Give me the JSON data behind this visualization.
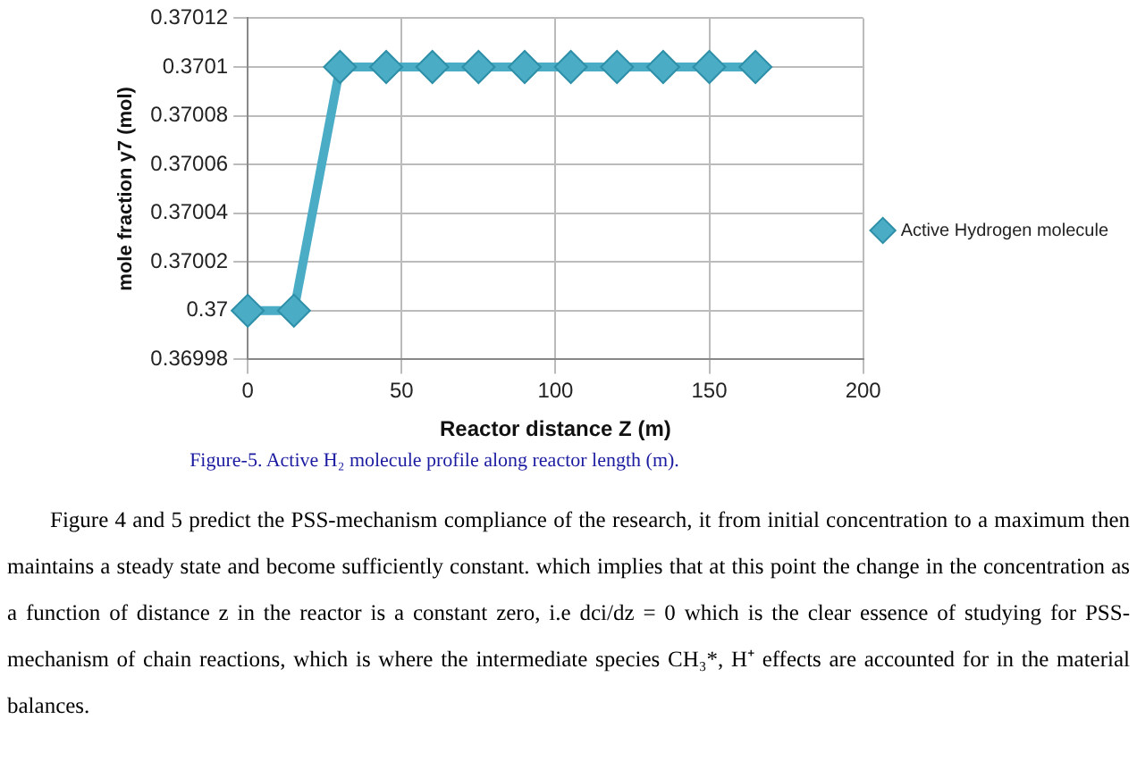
{
  "chart_data": {
    "type": "line",
    "xlabel": "Reactor distance Z (m)",
    "ylabel": "mole fraction y7 (mol)",
    "x": [
      0,
      15,
      30,
      45,
      60,
      75,
      90,
      105,
      120,
      135,
      150,
      165
    ],
    "series": [
      {
        "name": "Active Hydrogen molecule",
        "color": "#4bacc6",
        "values": [
          0.37,
          0.37,
          0.3701,
          0.3701,
          0.3701,
          0.3701,
          0.3701,
          0.3701,
          0.3701,
          0.3701,
          0.3701,
          0.3701
        ]
      }
    ],
    "xlim": [
      0,
      200
    ],
    "xticks": [
      0,
      50,
      100,
      150,
      200
    ],
    "ylim": [
      0.36998,
      0.37012
    ],
    "yticks": [
      {
        "value": 0.36998,
        "label": "0.36998"
      },
      {
        "value": 0.37,
        "label": "0.37"
      },
      {
        "value": 0.37002,
        "label": "0.37002"
      },
      {
        "value": 0.37004,
        "label": "0.37004"
      },
      {
        "value": 0.37006,
        "label": "0.37006"
      },
      {
        "value": 0.37008,
        "label": "0.37008"
      },
      {
        "value": 0.3701,
        "label": "0.3701"
      },
      {
        "value": 0.37012,
        "label": "0.37012"
      }
    ],
    "grid": true,
    "legend": "right",
    "marker": "diamond",
    "line_style": "solid",
    "annotations": [
      "Figure-5. Active H₂ molecule profile along reactor length (m).",
      "Figure 4 and 5 predict the PSS-mechanism compliance of the research, it from initial concentration to a maximum then maintains a steady state and become sufficiently constant. which implies that at this point the change in the concentration as a function of distance z in the reactor is a constant zero, i.e dci/dz = 0 which is the clear essence of studying for PSS-mechanism of chain reactions, which is where the intermediate species CH₃*, H⁺ effects are accounted for in the material balances."
    ]
  }
}
